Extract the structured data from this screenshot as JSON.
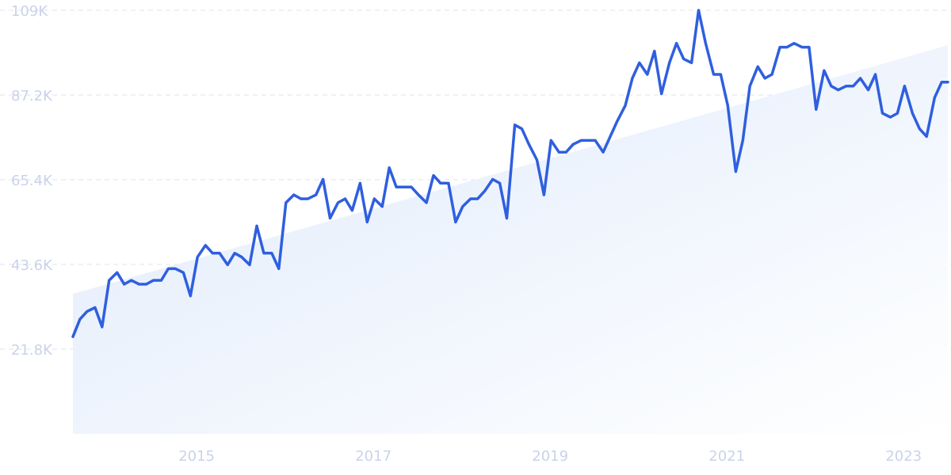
{
  "chart_data": {
    "type": "line",
    "title": "",
    "xlabel": "",
    "ylabel": "",
    "y_tick_labels": [
      "109K",
      "87.2K",
      "65.4K",
      "43.6K",
      "21.8K"
    ],
    "y_tick_values": [
      109000,
      87200,
      65400,
      43600,
      21800
    ],
    "ylim": [
      0,
      109000
    ],
    "x_tick_labels": [
      "2015",
      "2017",
      "2019",
      "2021",
      "2023"
    ],
    "x_tick_values": [
      2015,
      2017,
      2019,
      2021,
      2023
    ],
    "xlim": [
      2013.6,
      2023.5
    ],
    "grid": true,
    "legend": "none",
    "colors": {
      "line": "#2f5fdf",
      "trend_fill_top": "#dfeafb",
      "trend_fill_bottom": "#ffffff",
      "grid": "#dfe3ec",
      "tick_text": "#c9d3ea"
    },
    "trend": {
      "x": [
        2013.6,
        2023.5
      ],
      "y": [
        36000,
        100000
      ]
    },
    "series": [
      {
        "x": [
          2013.6,
          2013.68,
          2013.76,
          2013.85,
          2013.93,
          2014.01,
          2014.1,
          2014.18,
          2014.26,
          2014.35,
          2014.43,
          2014.51,
          2014.6,
          2014.68,
          2014.76,
          2014.85,
          2014.93,
          2015.01,
          2015.1,
          2015.18,
          2015.26,
          2015.35,
          2015.43,
          2015.51,
          2015.6,
          2015.68,
          2015.76,
          2015.85,
          2015.93,
          2016.01,
          2016.1,
          2016.18,
          2016.26,
          2016.35,
          2016.43,
          2016.51,
          2016.6,
          2016.68,
          2016.76,
          2016.85,
          2016.93,
          2017.01,
          2017.1,
          2017.18,
          2017.26,
          2017.35,
          2017.43,
          2017.51,
          2017.6,
          2017.68,
          2017.76,
          2017.85,
          2017.93,
          2018.01,
          2018.1,
          2018.18,
          2018.26,
          2018.35,
          2018.43,
          2018.51,
          2018.6,
          2018.68,
          2018.76,
          2018.85,
          2018.93,
          2019.01,
          2019.1,
          2019.18,
          2019.26,
          2019.35,
          2019.43,
          2019.51,
          2019.6,
          2019.68,
          2019.76,
          2019.85,
          2019.93,
          2020.01,
          2020.1,
          2020.18,
          2020.26,
          2020.35,
          2020.43,
          2020.51,
          2020.6,
          2020.68,
          2020.76,
          2020.85,
          2020.93,
          2021.01,
          2021.1,
          2021.18,
          2021.26,
          2021.35,
          2021.43,
          2021.51,
          2021.6,
          2021.68,
          2021.76,
          2021.85,
          2021.93,
          2022.01,
          2022.1,
          2022.18,
          2022.26,
          2022.35,
          2022.43,
          2022.51,
          2022.6,
          2022.68,
          2022.76,
          2022.85,
          2022.93,
          2023.01,
          2023.1,
          2023.18,
          2023.26,
          2023.35,
          2023.43,
          2023.5
        ],
        "y": [
          25000,
          29500,
          31500,
          32500,
          27500,
          39500,
          41500,
          38500,
          39500,
          38500,
          38500,
          39500,
          39500,
          42500,
          42500,
          41500,
          35500,
          45500,
          48500,
          46500,
          46500,
          43500,
          46500,
          45500,
          43500,
          53500,
          46500,
          46500,
          42500,
          59500,
          61500,
          60500,
          60500,
          61500,
          65500,
          55500,
          59500,
          60500,
          57500,
          64500,
          54500,
          60500,
          58500,
          68500,
          63500,
          63500,
          63500,
          61500,
          59500,
          66500,
          64500,
          64500,
          54500,
          58500,
          60500,
          60500,
          62500,
          65500,
          64500,
          55500,
          79500,
          78500,
          74500,
          70500,
          61500,
          75500,
          72500,
          72500,
          74500,
          75500,
          75500,
          75500,
          72500,
          76500,
          80500,
          84500,
          91500,
          95500,
          92500,
          98500,
          87500,
          95500,
          100500,
          96500,
          95500,
          109000,
          100500,
          92500,
          92500,
          84500,
          67500,
          75500,
          89500,
          94500,
          91500,
          92500,
          99500,
          99500,
          100500,
          99500,
          99500,
          83500,
          93500,
          89500,
          88500,
          89500,
          89500,
          91500,
          88500,
          92500,
          82500,
          81500,
          82500,
          89500,
          82500,
          78500,
          76500,
          86500,
          90500,
          90500
        ]
      }
    ]
  }
}
